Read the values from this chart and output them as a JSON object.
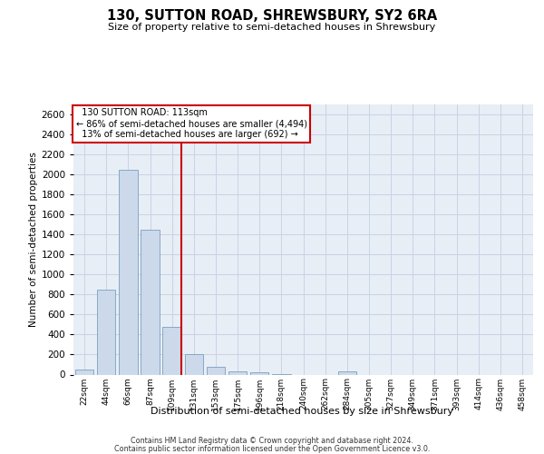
{
  "title": "130, SUTTON ROAD, SHREWSBURY, SY2 6RA",
  "subtitle": "Size of property relative to semi-detached houses in Shrewsbury",
  "xlabel": "Distribution of semi-detached houses by size in Shrewsbury",
  "ylabel": "Number of semi-detached properties",
  "property_size": 113,
  "property_label": "130 SUTTON ROAD: 113sqm",
  "pct_smaller": 86,
  "count_smaller": 4494,
  "pct_larger": 13,
  "count_larger": 692,
  "bar_color": "#ccd9eb",
  "bar_edge_color": "#7a9fc0",
  "annotation_box_color": "#ffffff",
  "annotation_border_color": "#cc0000",
  "vline_color": "#cc0000",
  "grid_color": "#c8d4e4",
  "background_color": "#e8eef6",
  "categories": [
    "22sqm",
    "44sqm",
    "66sqm",
    "87sqm",
    "109sqm",
    "131sqm",
    "153sqm",
    "175sqm",
    "196sqm",
    "218sqm",
    "240sqm",
    "262sqm",
    "284sqm",
    "305sqm",
    "327sqm",
    "349sqm",
    "371sqm",
    "393sqm",
    "414sqm",
    "436sqm",
    "458sqm"
  ],
  "values": [
    50,
    850,
    2050,
    1450,
    475,
    200,
    80,
    35,
    20,
    5,
    0,
    0,
    30,
    0,
    0,
    0,
    0,
    0,
    0,
    0,
    0
  ],
  "ylim": [
    0,
    2700
  ],
  "yticks": [
    0,
    200,
    400,
    600,
    800,
    1000,
    1200,
    1400,
    1600,
    1800,
    2000,
    2200,
    2400,
    2600
  ],
  "property_bin_index": 4,
  "footer1": "Contains HM Land Registry data © Crown copyright and database right 2024.",
  "footer2": "Contains public sector information licensed under the Open Government Licence v3.0."
}
